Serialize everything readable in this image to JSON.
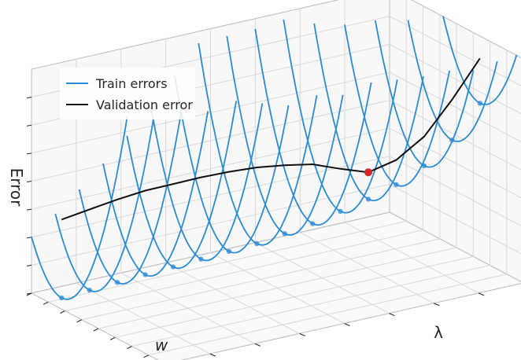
{
  "chart_data": {
    "type": "line",
    "projection": "3d",
    "title": "",
    "xlabel": "w",
    "ylabel": "λ",
    "zlabel": "Error",
    "tick_labels_visible": false,
    "grid": true,
    "legend": {
      "placement": "top-left",
      "entries": [
        {
          "label": "Train errors",
          "color": "#2b8cd6",
          "style": "line"
        },
        {
          "label": "Validation error",
          "color": "#111111",
          "style": "line"
        }
      ]
    },
    "colors": {
      "train": "#2b8cd6",
      "validation": "#111111",
      "minimum_marker": "#d62728",
      "grid": "#d9d9d9",
      "pane_edge": "#bdbdbd"
    },
    "w_range": [
      -1,
      1
    ],
    "lambda_range": [
      0,
      1
    ],
    "series_count": 16,
    "train_errors": {
      "description_model": "parabolic train error per lambda slice",
      "lambda": [
        0.0,
        0.0667,
        0.1333,
        0.2,
        0.2667,
        0.3333,
        0.4,
        0.4667,
        0.5333,
        0.6,
        0.6667,
        0.7333,
        0.8,
        0.8667,
        0.9333,
        1.0
      ],
      "w_min": [
        -0.55,
        -0.49,
        -0.43,
        -0.37,
        -0.31,
        -0.25,
        -0.19,
        -0.13,
        -0.07,
        -0.01,
        0.05,
        0.11,
        0.17,
        0.23,
        0.29,
        0.35
      ],
      "error_min": [
        0.05,
        0.07,
        0.09,
        0.11,
        0.13,
        0.15,
        0.17,
        0.19,
        0.22,
        0.25,
        0.29,
        0.33,
        0.38,
        0.45,
        0.55,
        0.7
      ],
      "curvature": 1.0
    },
    "validation_error": {
      "lambda": [
        0.0,
        0.0667,
        0.1333,
        0.2,
        0.2667,
        0.3333,
        0.4,
        0.4667,
        0.5333,
        0.6,
        0.6667,
        0.7333,
        0.8,
        0.8667,
        0.9333,
        1.0
      ],
      "error": [
        0.4,
        0.43,
        0.46,
        0.485,
        0.5,
        0.515,
        0.525,
        0.53,
        0.525,
        0.515,
        0.48,
        0.45,
        0.49,
        0.58,
        0.73,
        0.9
      ]
    },
    "minimum_point": {
      "lambda": 0.7333,
      "error": 0.45
    }
  }
}
